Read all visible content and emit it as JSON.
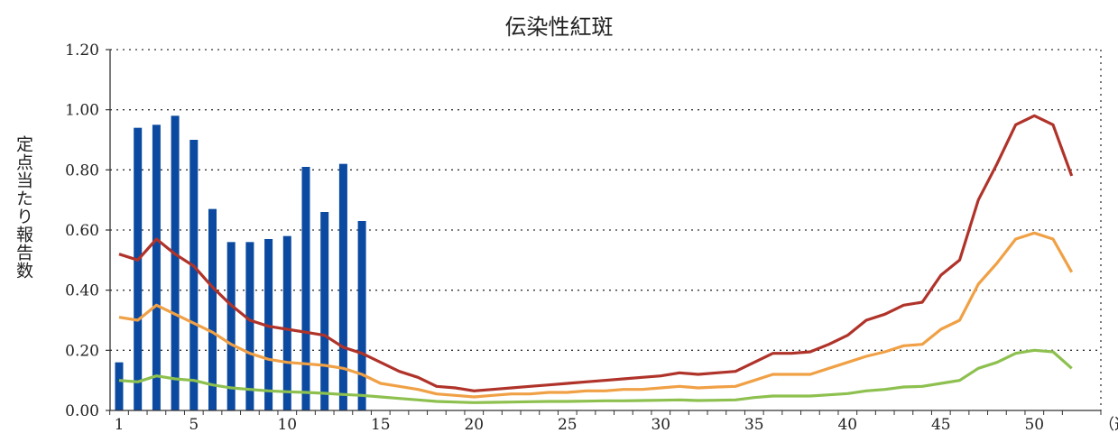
{
  "chart_data": {
    "type": "bar+line",
    "title": "伝染性紅斑",
    "ylabel": "定点当たり報告数",
    "xunit": "（週）",
    "ylim": [
      0,
      1.2
    ],
    "yticks": [
      "0.00",
      "0.20",
      "0.40",
      "0.60",
      "0.80",
      "1.00",
      "1.20"
    ],
    "xticks": [
      1,
      5,
      10,
      15,
      20,
      25,
      30,
      35,
      40,
      45,
      50
    ],
    "xrange": [
      1,
      52
    ],
    "grid": true,
    "bars": {
      "color": "#0b4aa0",
      "weeks": [
        1,
        2,
        3,
        4,
        5,
        6,
        7,
        8,
        9,
        10,
        11,
        12,
        13,
        14
      ],
      "values": [
        0.16,
        0.94,
        0.95,
        0.98,
        0.9,
        0.67,
        0.56,
        0.56,
        0.57,
        0.58,
        0.81,
        0.66,
        0.82,
        0.63
      ]
    },
    "series": [
      {
        "color": "#b0332a",
        "x": [
          1,
          2,
          3,
          4,
          5,
          6,
          7,
          8,
          9,
          10,
          11,
          12,
          13,
          14,
          15,
          16,
          17,
          18,
          19,
          20,
          21,
          22,
          23,
          24,
          25,
          26,
          27,
          28,
          29,
          30,
          31,
          32,
          33,
          34,
          35,
          36,
          37,
          38,
          39,
          40,
          41,
          42,
          43,
          44,
          45,
          46,
          47,
          48,
          49,
          50,
          51,
          52
        ],
        "values": [
          0.52,
          0.5,
          0.57,
          0.52,
          0.48,
          0.41,
          0.35,
          0.3,
          0.28,
          0.27,
          0.26,
          0.25,
          0.21,
          0.19,
          0.16,
          0.13,
          0.11,
          0.08,
          0.075,
          0.065,
          0.07,
          0.075,
          0.08,
          0.085,
          0.09,
          0.095,
          0.1,
          0.105,
          0.11,
          0.115,
          0.125,
          0.12,
          0.125,
          0.13,
          0.16,
          0.19,
          0.19,
          0.195,
          0.22,
          0.25,
          0.3,
          0.32,
          0.35,
          0.36,
          0.45,
          0.5,
          0.7,
          0.82,
          0.95,
          0.98,
          0.95,
          0.78
        ]
      },
      {
        "color": "#f0a045",
        "x": [
          1,
          2,
          3,
          4,
          5,
          6,
          7,
          8,
          9,
          10,
          11,
          12,
          13,
          14,
          15,
          16,
          17,
          18,
          19,
          20,
          21,
          22,
          23,
          24,
          25,
          26,
          27,
          28,
          29,
          30,
          31,
          32,
          33,
          34,
          35,
          36,
          37,
          38,
          39,
          40,
          41,
          42,
          43,
          44,
          45,
          46,
          47,
          48,
          49,
          50,
          51,
          52
        ],
        "values": [
          0.31,
          0.3,
          0.35,
          0.32,
          0.29,
          0.26,
          0.22,
          0.19,
          0.17,
          0.16,
          0.155,
          0.15,
          0.14,
          0.12,
          0.09,
          0.08,
          0.07,
          0.055,
          0.05,
          0.045,
          0.05,
          0.055,
          0.055,
          0.06,
          0.06,
          0.065,
          0.065,
          0.07,
          0.07,
          0.075,
          0.08,
          0.075,
          0.078,
          0.08,
          0.1,
          0.12,
          0.12,
          0.12,
          0.14,
          0.16,
          0.18,
          0.195,
          0.215,
          0.22,
          0.27,
          0.3,
          0.42,
          0.49,
          0.57,
          0.59,
          0.57,
          0.46
        ]
      },
      {
        "color": "#8dc04f",
        "x": [
          1,
          2,
          3,
          4,
          5,
          6,
          7,
          8,
          9,
          10,
          11,
          12,
          13,
          14,
          15,
          16,
          17,
          18,
          19,
          20,
          21,
          22,
          23,
          24,
          25,
          26,
          27,
          28,
          29,
          30,
          31,
          32,
          33,
          34,
          35,
          36,
          37,
          38,
          39,
          40,
          41,
          42,
          43,
          44,
          45,
          46,
          47,
          48,
          49,
          50,
          51,
          52
        ],
        "values": [
          0.1,
          0.095,
          0.115,
          0.105,
          0.1,
          0.085,
          0.075,
          0.07,
          0.065,
          0.062,
          0.06,
          0.057,
          0.053,
          0.05,
          0.045,
          0.04,
          0.035,
          0.03,
          0.028,
          0.026,
          0.027,
          0.028,
          0.029,
          0.03,
          0.03,
          0.031,
          0.032,
          0.032,
          0.033,
          0.034,
          0.035,
          0.033,
          0.034,
          0.035,
          0.043,
          0.048,
          0.048,
          0.048,
          0.052,
          0.056,
          0.065,
          0.07,
          0.078,
          0.08,
          0.09,
          0.1,
          0.14,
          0.16,
          0.19,
          0.2,
          0.195,
          0.14
        ]
      }
    ]
  }
}
